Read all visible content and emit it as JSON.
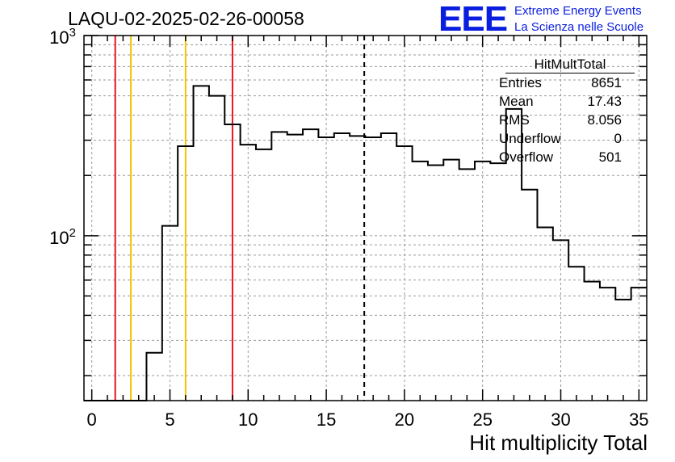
{
  "title": "LAQU-02-2025-02-26-00058",
  "logo": {
    "mark": "EEE",
    "line1": "Extreme Energy Events",
    "line2": "La Scienza nelle Scuole",
    "color": "#0a1ee0"
  },
  "stats": {
    "name": "HitMultTotal",
    "rows": [
      {
        "key": "Entries",
        "value": "8651"
      },
      {
        "key": "Mean",
        "value": "17.43"
      },
      {
        "key": "RMS",
        "value": "8.056"
      },
      {
        "key": "Underflow",
        "value": "0"
      },
      {
        "key": "Overflow",
        "value": "501"
      }
    ]
  },
  "chart_data": {
    "type": "histogram",
    "title": "LAQU-02-2025-02-26-00058",
    "xlabel": "Hit multiplicity Total",
    "ylabel": "",
    "xlim": [
      -0.5,
      35.5
    ],
    "ylim": [
      15,
      1000
    ],
    "yscale": "log",
    "grid": true,
    "bin_width": 1,
    "bin_centers": [
      0,
      1,
      2,
      3,
      4,
      5,
      6,
      7,
      8,
      9,
      10,
      11,
      12,
      13,
      14,
      15,
      16,
      17,
      18,
      19,
      20,
      21,
      22,
      23,
      24,
      25,
      26,
      27,
      28,
      29,
      30,
      31,
      32,
      33,
      34,
      35
    ],
    "values": [
      0,
      0,
      0,
      0,
      26,
      112,
      280,
      560,
      500,
      360,
      285,
      270,
      330,
      320,
      340,
      310,
      325,
      315,
      310,
      325,
      280,
      235,
      225,
      240,
      215,
      235,
      230,
      430,
      170,
      110,
      95,
      70,
      59,
      55,
      48,
      55
    ],
    "xticks": [
      0,
      5,
      10,
      15,
      20,
      25,
      30,
      35
    ],
    "yticks": [
      100,
      1000
    ],
    "ytick_labels": [
      "10^2",
      "10^3"
    ],
    "vertical_lines": [
      {
        "x": 1.5,
        "color": "#e8141e"
      },
      {
        "x": 2.5,
        "color": "#f2c400"
      },
      {
        "x": 6.0,
        "color": "#f2c400"
      },
      {
        "x": 9.0,
        "color": "#e8141e"
      },
      {
        "x": 17.43,
        "color": "#000000",
        "style": "dashed"
      }
    ]
  }
}
